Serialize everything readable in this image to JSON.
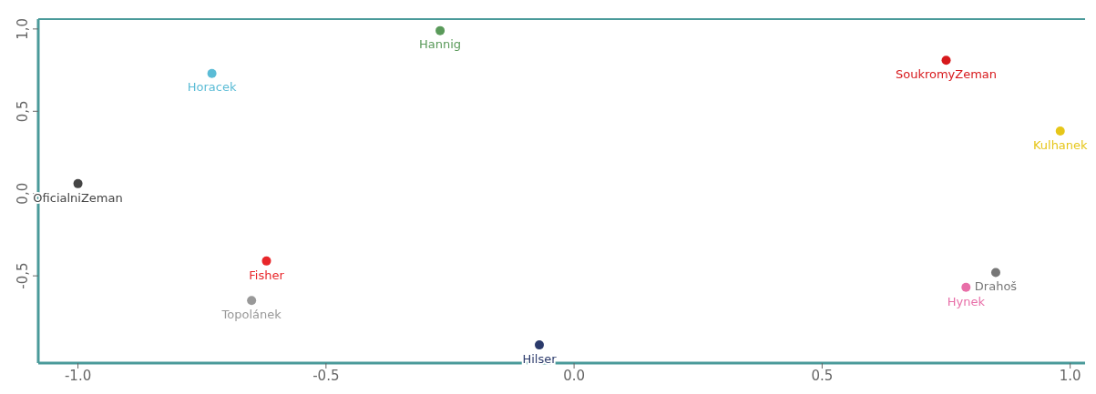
{
  "chart_data": {
    "type": "scatter",
    "marker": "circle",
    "xlim": [
      -1.08,
      1.03
    ],
    "ylim": [
      -1.03,
      1.06
    ],
    "xticks": [
      {
        "value": -1,
        "label": "-1.0"
      },
      {
        "value": -0.5,
        "label": "-0.5"
      },
      {
        "value": 0,
        "label": "0.0"
      },
      {
        "value": 0.5,
        "label": "0.5"
      },
      {
        "value": 1,
        "label": "1.0"
      }
    ],
    "yticks": [
      {
        "value": -0.5,
        "label": "-0,5"
      },
      {
        "value": 0,
        "label": "0,0"
      },
      {
        "value": 0.5,
        "label": "0,5"
      },
      {
        "value": 1,
        "label": "1,0"
      }
    ],
    "series": [
      {
        "name": "Hannig",
        "color": "#5a9a5a",
        "x": [
          -0.27
        ],
        "values": [
          0.99
        ]
      },
      {
        "name": "Horacek",
        "color": "#5bbcd6",
        "x": [
          -0.73
        ],
        "values": [
          0.73
        ]
      },
      {
        "name": "SoukromyZeman",
        "color": "#d7191c",
        "x": [
          0.75
        ],
        "values": [
          0.81
        ]
      },
      {
        "name": "Kulhanek",
        "color": "#e6c619",
        "x": [
          0.98
        ],
        "values": [
          0.38
        ]
      },
      {
        "name": "OficialniZeman",
        "color": "#444444",
        "x": [
          -1.0
        ],
        "values": [
          0.06
        ]
      },
      {
        "name": "Fisher",
        "color": "#e8262a",
        "x": [
          -0.62
        ],
        "values": [
          -0.41
        ]
      },
      {
        "name": "Topolánek",
        "color": "#999999",
        "x": [
          -0.65
        ],
        "values": [
          -0.65
        ]
      },
      {
        "name": "Hilser",
        "color": "#2b3a6b",
        "x": [
          -0.07
        ],
        "values": [
          -0.92
        ]
      },
      {
        "name": "Drahoš",
        "color": "#777777",
        "x": [
          0.85
        ],
        "values": [
          -0.48
        ]
      },
      {
        "name": "Hynek",
        "color": "#e86fa8",
        "x": [
          0.79
        ],
        "values": [
          -0.57
        ]
      }
    ]
  }
}
